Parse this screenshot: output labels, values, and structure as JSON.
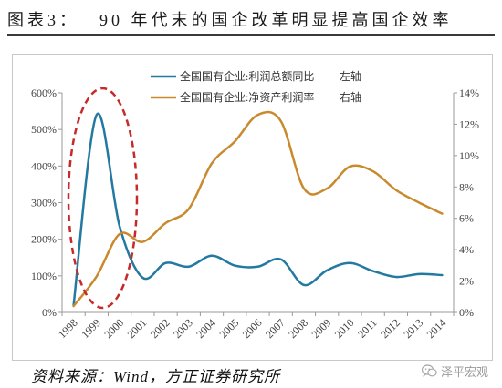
{
  "figure": {
    "label": "图表3：",
    "source": "资料来源：Wind，方正证券研究所",
    "watermark": "泽平宏观",
    "watermark_icon": "wechat-icon"
  },
  "chart_data": {
    "type": "line",
    "title": "90 年代末的国企改革明显提高国企效率",
    "categories": [
      "1998",
      "1999",
      "2000",
      "2001",
      "2002",
      "2003",
      "2004",
      "2005",
      "2006",
      "2007",
      "2008",
      "2009",
      "2010",
      "2011",
      "2012",
      "2013",
      "2014"
    ],
    "series": [
      {
        "name": "全国国有企业:利润总额同比",
        "axis_note": "左轴",
        "axis": "left",
        "color": "#2379a0",
        "values": [
          20,
          540,
          235,
          95,
          135,
          125,
          155,
          128,
          125,
          145,
          75,
          115,
          135,
          113,
          97,
          105,
          102
        ]
      },
      {
        "name": "全国国有企业:净资产利润率",
        "axis_note": "右轴",
        "axis": "right",
        "color": "#c98a2e",
        "values": [
          0.4,
          2.3,
          5.0,
          4.5,
          5.7,
          6.6,
          9.5,
          10.9,
          12.6,
          12.2,
          7.9,
          7.9,
          9.3,
          9.0,
          7.8,
          7.0,
          6.3
        ]
      }
    ],
    "y_left": {
      "range": [
        0,
        600
      ],
      "tick_labels": [
        "0%",
        "100%",
        "200%",
        "300%",
        "400%",
        "500%",
        "600%"
      ]
    },
    "y_right": {
      "range": [
        0,
        14
      ],
      "tick_labels": [
        "0%",
        "2%",
        "4%",
        "6%",
        "8%",
        "10%",
        "12%",
        "14%"
      ]
    },
    "legend_position": "top-center",
    "grid": false,
    "annotation": {
      "shape": "dashed-ellipse",
      "color": "#c62a2a",
      "categories": [
        "1998",
        "1999",
        "2000"
      ]
    }
  }
}
